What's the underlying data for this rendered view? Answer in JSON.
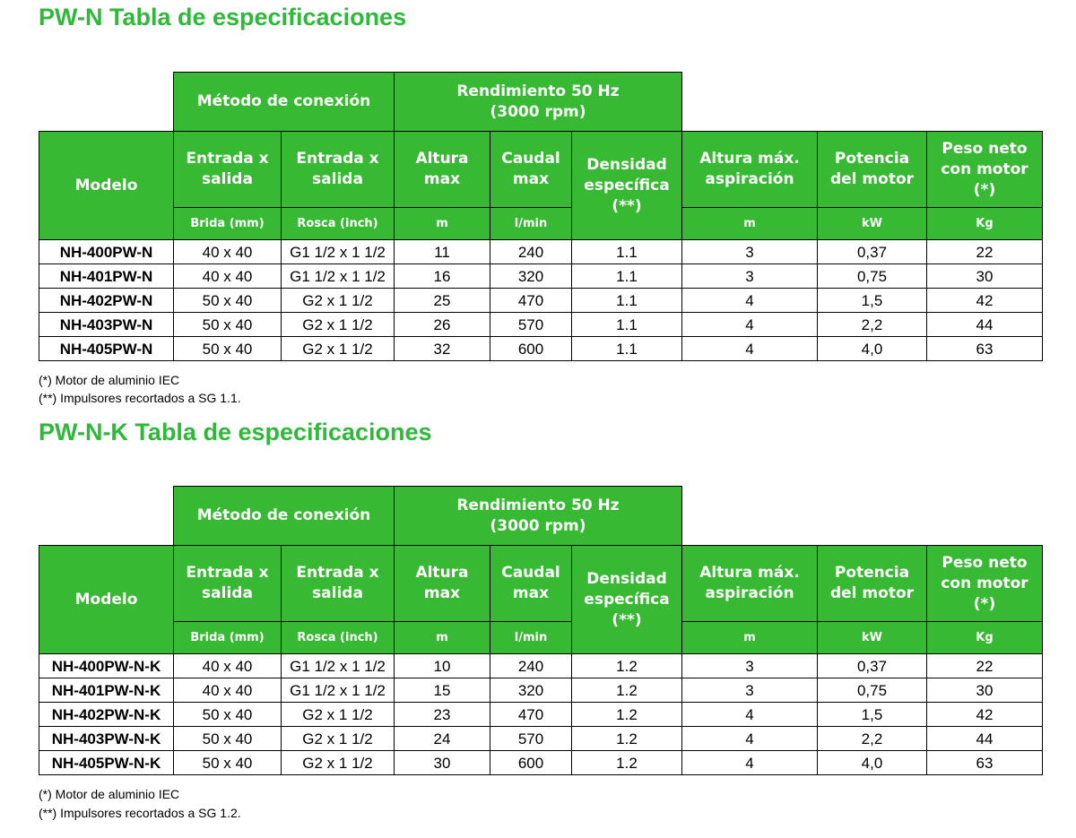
{
  "colors": {
    "accent": "#38b933",
    "title": "#2fb83a"
  },
  "tables": [
    {
      "title": "PW-N Tabla de especificaciones",
      "group_connection": "Método de conexión",
      "group_performance_l1": "Rendimiento 50 Hz",
      "group_performance_l2": "(3000 rpm)",
      "h_model": "Modelo",
      "h_in1_l1": "Entrada x",
      "h_in1_l2": "salida",
      "h_in2_l1": "Entrada x",
      "h_in2_l2": "salida",
      "h_head_l1": "Altura",
      "h_head_l2": "max",
      "h_flow_l1": "Caudal",
      "h_flow_l2": "max",
      "h_dens_l1": "Densidad",
      "h_dens_l2": "específica",
      "h_dens_l3": "(**)",
      "h_suct_l1": "Altura máx.",
      "h_suct_l2": "aspiración",
      "h_pow_l1": "Potencia",
      "h_pow_l2": "del motor",
      "h_wt_l1": "Peso neto",
      "h_wt_l2": "con motor",
      "h_wt_l3": "(*)",
      "u_flange": "Brida (mm)",
      "u_thread": "Rosca (inch)",
      "u_head": "m",
      "u_flow": "l/min",
      "u_suct": "m",
      "u_pow": "kW",
      "u_wt": "Kg",
      "rows": [
        [
          "NH-400PW-N",
          "40 x 40",
          "G1 1/2 x 1 1/2",
          "11",
          "240",
          "1.1",
          "3",
          "0,37",
          "22"
        ],
        [
          "NH-401PW-N",
          "40 x 40",
          "G1 1/2 x 1 1/2",
          "16",
          "320",
          "1.1",
          "3",
          "0,75",
          "30"
        ],
        [
          "NH-402PW-N",
          "50 x 40",
          "G2 x 1 1/2",
          "25",
          "470",
          "1.1",
          "4",
          "1,5",
          "42"
        ],
        [
          "NH-403PW-N",
          "50 x 40",
          "G2 x 1 1/2",
          "26",
          "570",
          "1.1",
          "4",
          "2,2",
          "44"
        ],
        [
          "NH-405PW-N",
          "50 x 40",
          "G2 x 1 1/2",
          "32",
          "600",
          "1.1",
          "4",
          "4,0",
          "63"
        ]
      ],
      "note1": "(*) Motor de aluminio IEC",
      "note2": "(**) Impulsores recortados a SG 1.1."
    },
    {
      "title": "PW-N-K Tabla de especificaciones",
      "group_connection": "Método de conexión",
      "group_performance_l1": "Rendimiento 50 Hz",
      "group_performance_l2": "(3000 rpm)",
      "h_model": "Modelo",
      "h_in1_l1": "Entrada x",
      "h_in1_l2": "salida",
      "h_in2_l1": "Entrada x",
      "h_in2_l2": "salida",
      "h_head_l1": "Altura",
      "h_head_l2": "max",
      "h_flow_l1": "Caudal",
      "h_flow_l2": "max",
      "h_dens_l1": "Densidad",
      "h_dens_l2": "específica",
      "h_dens_l3": "(**)",
      "h_suct_l1": "Altura máx.",
      "h_suct_l2": "aspiración",
      "h_pow_l1": "Potencia",
      "h_pow_l2": "del motor",
      "h_wt_l1": "Peso neto",
      "h_wt_l2": "con motor",
      "h_wt_l3": "(*)",
      "u_flange": "Brida (mm)",
      "u_thread": "Rosca (inch)",
      "u_head": "m",
      "u_flow": "l/min",
      "u_suct": "m",
      "u_pow": "kW",
      "u_wt": "Kg",
      "rows": [
        [
          "NH-400PW-N-K",
          "40 x 40",
          "G1 1/2 x 1 1/2",
          "10",
          "240",
          "1.2",
          "3",
          "0,37",
          "22"
        ],
        [
          "NH-401PW-N-K",
          "40 x 40",
          "G1 1/2 x 1 1/2",
          "15",
          "320",
          "1.2",
          "3",
          "0,75",
          "30"
        ],
        [
          "NH-402PW-N-K",
          "50 x 40",
          "G2 x 1 1/2",
          "23",
          "470",
          "1.2",
          "4",
          "1,5",
          "42"
        ],
        [
          "NH-403PW-N-K",
          "50 x 40",
          "G2 x 1 1/2",
          "24",
          "570",
          "1.2",
          "4",
          "2,2",
          "44"
        ],
        [
          "NH-405PW-N-K",
          "50 x 40",
          "G2 x 1 1/2",
          "30",
          "600",
          "1.2",
          "4",
          "4,0",
          "63"
        ]
      ],
      "note1": "(*) Motor de aluminio IEC",
      "note2": "(**) Impulsores recortados a SG 1.2."
    }
  ]
}
